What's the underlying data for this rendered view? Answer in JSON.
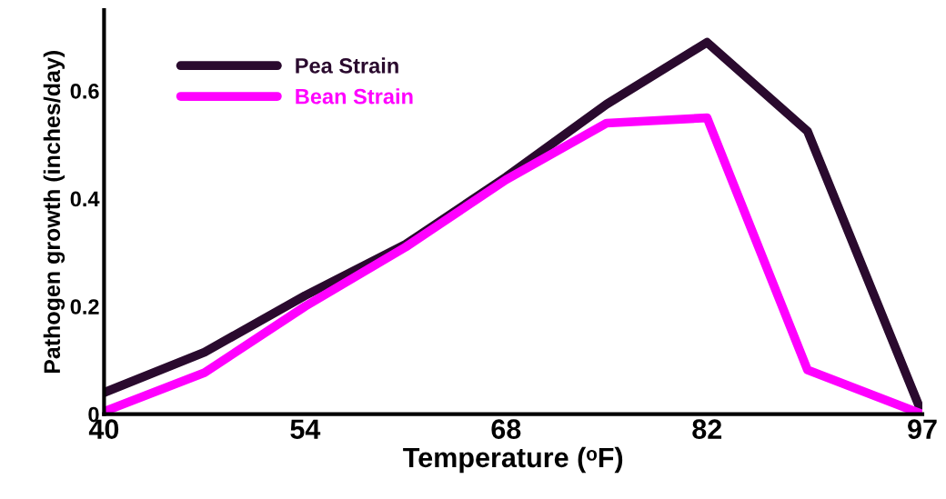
{
  "chart_data": {
    "type": "line",
    "xlabel": "Temperature (ᵒF)",
    "ylabel": "Pathogen growth (inches/day)",
    "x": [
      40,
      47,
      54,
      61,
      68,
      75,
      82,
      89,
      97
    ],
    "series": [
      {
        "name": "Pea Strain",
        "color": "#2a0a2e",
        "values": [
          0.04,
          0.115,
          0.22,
          0.315,
          0.44,
          0.575,
          0.69,
          0.525,
          0.0
        ]
      },
      {
        "name": "Bean Strain",
        "color": "#ff00ff",
        "values": [
          0.005,
          0.077,
          0.2,
          0.31,
          0.435,
          0.54,
          0.55,
          0.082,
          0.0
        ]
      }
    ],
    "xlim": [
      40,
      97
    ],
    "xticks": [
      40,
      54,
      68,
      82,
      97
    ],
    "ylim": [
      0,
      0.75
    ],
    "yticks": [
      0,
      0.2,
      0.4,
      0.6
    ],
    "grid": false,
    "legend": "top left",
    "marker": "none",
    "line_style": "solid"
  }
}
